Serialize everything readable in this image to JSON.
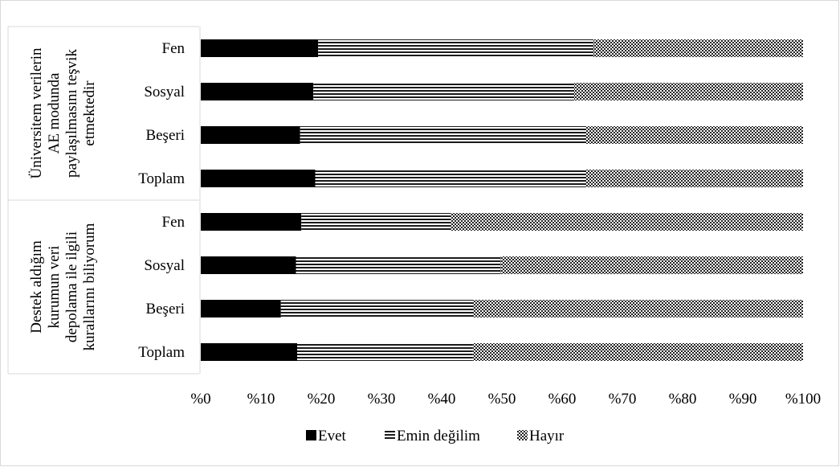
{
  "chart_data": {
    "type": "bar",
    "orientation": "horizontal",
    "stacked": "percent",
    "groups": [
      {
        "label_lines": [
          "Üniversitem verilerin",
          "AE modunda",
          "paylaşılmasını teşvik",
          "etmektedir"
        ],
        "categories": [
          "Fen",
          "Sosyal",
          "Beşeri",
          "Toplam"
        ],
        "series": [
          {
            "name": "Evet",
            "values": [
              19.5,
              18.7,
              16.5,
              19.0
            ]
          },
          {
            "name": "Emin değilim",
            "values": [
              45.7,
              43.3,
              47.3,
              45.0
            ]
          },
          {
            "name": "Hayır",
            "values": [
              34.8,
              38.0,
              36.2,
              36.0
            ]
          }
        ]
      },
      {
        "label_lines": [
          "Destek aldığım",
          "kurumun veri",
          "depolama ile ilgili",
          "kurallarını biliyorum"
        ],
        "categories": [
          "Fen",
          "Sosyal",
          "Beşeri",
          "Toplam"
        ],
        "series": [
          {
            "name": "Evet",
            "values": [
              16.7,
              15.8,
              13.3,
              16.0
            ]
          },
          {
            "name": "Emin değilim",
            "values": [
              24.8,
              34.0,
              31.9,
              29.1
            ]
          },
          {
            "name": "Hayır",
            "values": [
              58.5,
              50.2,
              54.8,
              54.9
            ]
          }
        ]
      }
    ],
    "xlim": [
      0,
      100
    ],
    "x_ticks": [
      "%0",
      "%10",
      "%20",
      "%30",
      "%40",
      "%50",
      "%60",
      "%70",
      "%80",
      "%90",
      "%100"
    ],
    "legend": [
      "Evet",
      "Emin değilim",
      "Hayır"
    ],
    "legend_position": "bottom",
    "grid": false,
    "series_colors": {
      "Evet": "#000000",
      "Emin değilim": "#595959",
      "Hayır": "#7f7f7f"
    }
  }
}
